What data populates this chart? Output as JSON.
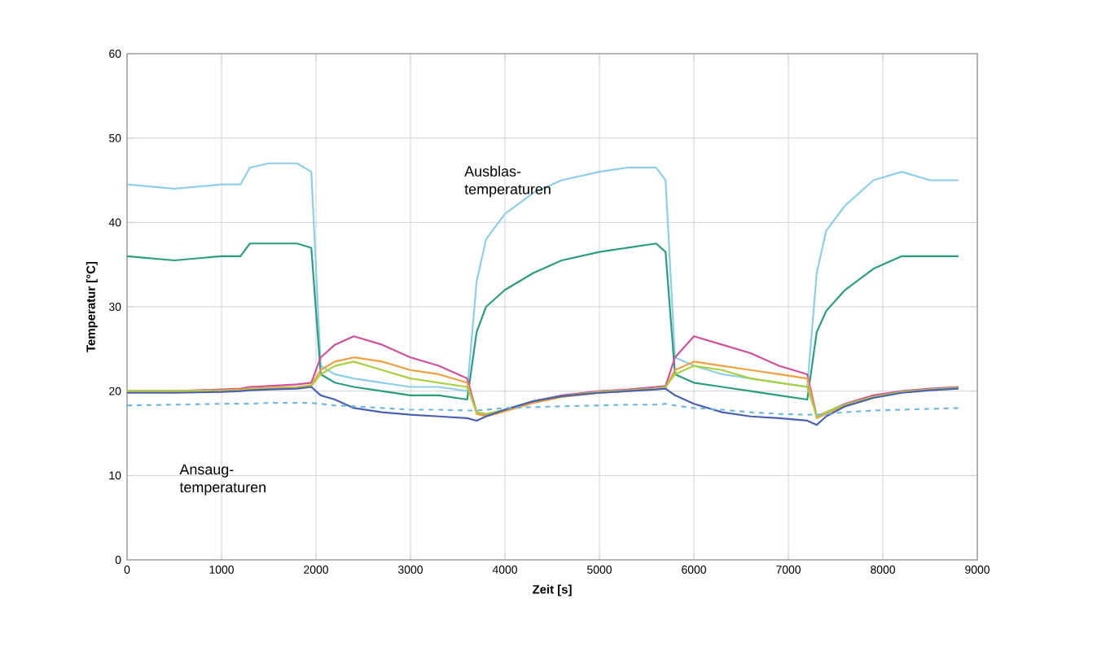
{
  "chart_data": {
    "type": "line",
    "xlabel": "Zeit [s]",
    "ylabel": "Temperatur [°C]",
    "annotations": [
      "Ausblas-temperaturen",
      "Ansaug-temperaturen"
    ],
    "xlim": [
      0,
      9000
    ],
    "xticks": [
      0,
      1000,
      2000,
      3000,
      4000,
      5000,
      6000,
      7000,
      8000,
      9000
    ],
    "ylim": [
      0,
      60
    ],
    "yticks": [
      0,
      10,
      20,
      30,
      40,
      50,
      60
    ],
    "grid": true,
    "x": [
      0,
      500,
      1000,
      1200,
      1300,
      1500,
      1800,
      1950,
      2050,
      2200,
      2400,
      2700,
      3000,
      3300,
      3600,
      3700,
      3800,
      4000,
      4300,
      4600,
      5000,
      5300,
      5600,
      5700,
      5800,
      6000,
      6300,
      6600,
      6900,
      7200,
      7300,
      7400,
      7600,
      7900,
      8200,
      8500,
      8800
    ],
    "series": [
      {
        "color": "#8ccfe8",
        "values": [
          44.5,
          44,
          44.5,
          44.5,
          46.5,
          47,
          47,
          46,
          23,
          22,
          21.5,
          21,
          20.5,
          20.5,
          20,
          33,
          38,
          41,
          43.5,
          45,
          46,
          46.5,
          46.5,
          45,
          24,
          23,
          22,
          21.5,
          21,
          20.5,
          34,
          39,
          42,
          45,
          46,
          45,
          45
        ]
      },
      {
        "color": "#2a9d80",
        "values": [
          36,
          35.5,
          36,
          36,
          37.5,
          37.5,
          37.5,
          37,
          22,
          21,
          20.5,
          20,
          19.5,
          19.5,
          19,
          27,
          30,
          32,
          34,
          35.5,
          36.5,
          37,
          37.5,
          36.5,
          22,
          21,
          20.5,
          20,
          19.5,
          19,
          27,
          29.5,
          32,
          34.5,
          36,
          36,
          36
        ]
      },
      {
        "color": "#d0509a",
        "values": [
          20,
          20,
          20.2,
          20.3,
          20.5,
          20.6,
          20.8,
          21,
          24,
          25.5,
          26.5,
          25.5,
          24,
          23,
          21.5,
          17.5,
          17.2,
          17.8,
          18.8,
          19.5,
          20,
          20.2,
          20.5,
          20.6,
          24,
          26.5,
          25.5,
          24.5,
          23,
          22,
          17,
          17.5,
          18.5,
          19.5,
          20,
          20.3,
          20.5
        ]
      },
      {
        "color": "#f0a040",
        "values": [
          20,
          20,
          20.1,
          20.2,
          20.3,
          20.4,
          20.5,
          20.7,
          22.5,
          23.5,
          24,
          23.5,
          22.5,
          22,
          21,
          17.3,
          17,
          17.6,
          18.6,
          19.3,
          19.8,
          20,
          20.3,
          20.4,
          22.5,
          23.5,
          23,
          22.5,
          22,
          21.5,
          16.8,
          17.3,
          18.3,
          19.3,
          null,
          null,
          null
        ]
      },
      {
        "color": "#a8d040",
        "values": [
          20,
          20,
          20,
          20.1,
          20.2,
          20.3,
          20.4,
          20.6,
          22,
          23,
          23.5,
          22.5,
          21.5,
          21,
          20.5,
          17.5,
          17.3,
          17.8,
          18.8,
          19.4,
          19.9,
          20.1,
          20.3,
          20.5,
          22,
          23,
          22.5,
          21.5,
          21,
          20.5,
          17,
          17.5,
          18.4,
          19.3,
          19.9,
          20.2,
          20.4
        ]
      },
      {
        "color": "#4a60b0",
        "values": [
          19.8,
          19.8,
          19.9,
          20,
          20.1,
          20.2,
          20.3,
          20.5,
          19.5,
          19,
          18,
          17.5,
          17.2,
          17,
          16.8,
          16.5,
          17,
          17.8,
          18.8,
          19.4,
          19.8,
          20,
          20.2,
          20.3,
          19.5,
          18.5,
          17.5,
          17,
          16.8,
          16.5,
          16,
          17,
          18.2,
          19.2,
          19.8,
          20.1,
          20.3
        ]
      },
      {
        "color": "#70b8e0",
        "line_style": "dashed",
        "values": [
          18.3,
          18.4,
          18.5,
          18.5,
          18.5,
          18.6,
          18.6,
          18.6,
          18.5,
          18.3,
          18.2,
          18,
          17.8,
          17.8,
          17.7,
          17.7,
          17.8,
          18,
          18.1,
          18.2,
          18.3,
          18.4,
          18.4,
          18.5,
          18.3,
          18,
          17.8,
          17.5,
          17.3,
          17.2,
          17.2,
          17.3,
          17.5,
          17.7,
          17.8,
          17.9,
          18
        ]
      }
    ]
  }
}
